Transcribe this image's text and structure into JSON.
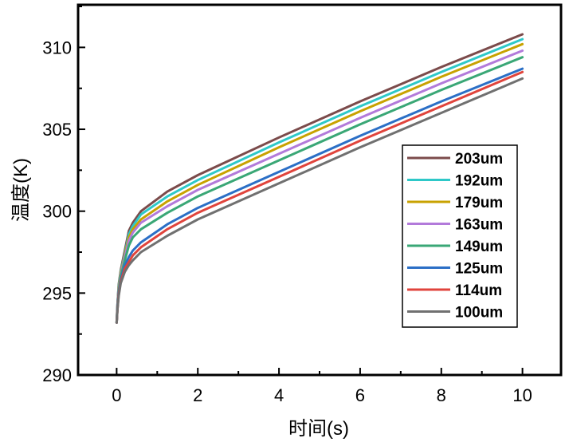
{
  "chart_data": {
    "type": "line",
    "title": "",
    "xlabel": "时间(s)",
    "ylabel": "温度(K)",
    "xlim": [
      -0.95,
      10.95
    ],
    "ylim": [
      290,
      312.6
    ],
    "x_ticks": [
      0,
      2,
      4,
      6,
      8,
      10
    ],
    "x_tick_labels": [
      "0",
      "2",
      "4",
      "6",
      "8",
      "10"
    ],
    "y_ticks": [
      290,
      295,
      300,
      305,
      310
    ],
    "y_tick_labels": [
      "290",
      "295",
      "300",
      "305",
      "310"
    ],
    "grid": false,
    "legend_position": "right",
    "x": [
      0,
      0.02,
      0.05,
      0.1,
      0.2,
      0.3,
      0.4,
      0.6,
      1.25,
      2,
      4,
      6,
      8,
      10
    ],
    "series": [
      {
        "name": "203um",
        "color": "#7b4b4b",
        "values": [
          293.2,
          294.3,
          295.5,
          296.4,
          297.6,
          298.8,
          299.3,
          300.0,
          301.2,
          302.2,
          304.5,
          306.7,
          308.8,
          310.8
        ]
      },
      {
        "name": "192um",
        "color": "#2ec8c8",
        "values": [
          293.2,
          294.3,
          295.4,
          296.3,
          297.4,
          298.6,
          299.1,
          299.8,
          300.9,
          301.9,
          304.2,
          306.4,
          308.5,
          310.5
        ]
      },
      {
        "name": "179um",
        "color": "#c8a200",
        "values": [
          293.2,
          294.2,
          295.3,
          296.2,
          297.3,
          298.4,
          298.9,
          299.5,
          300.6,
          301.6,
          303.9,
          306.1,
          308.2,
          310.2
        ]
      },
      {
        "name": "163um",
        "color": "#b27ada",
        "values": [
          293.2,
          294.2,
          295.2,
          296.1,
          297.2,
          298.2,
          298.7,
          299.3,
          300.3,
          301.3,
          303.5,
          305.7,
          307.8,
          309.8
        ]
      },
      {
        "name": "149um",
        "color": "#3aa776",
        "values": [
          293.2,
          294.1,
          295.1,
          296.0,
          297.0,
          297.9,
          298.4,
          298.9,
          299.9,
          300.9,
          303.1,
          305.3,
          307.4,
          309.4
        ]
      },
      {
        "name": "125um",
        "color": "#2b6fc6",
        "values": [
          293.2,
          294.1,
          295.0,
          295.8,
          296.7,
          297.2,
          297.6,
          298.1,
          299.2,
          300.2,
          302.4,
          304.6,
          306.7,
          308.7
        ]
      },
      {
        "name": "114um",
        "color": "#e0443c",
        "values": [
          293.2,
          294.0,
          294.9,
          295.7,
          296.5,
          296.9,
          297.3,
          297.8,
          298.9,
          299.9,
          302.1,
          304.3,
          306.4,
          308.5
        ]
      },
      {
        "name": "100um",
        "color": "#707070",
        "values": [
          293.2,
          294.0,
          294.8,
          295.6,
          296.3,
          296.7,
          297.0,
          297.5,
          298.5,
          299.5,
          301.7,
          303.9,
          306.0,
          308.1
        ]
      }
    ]
  }
}
